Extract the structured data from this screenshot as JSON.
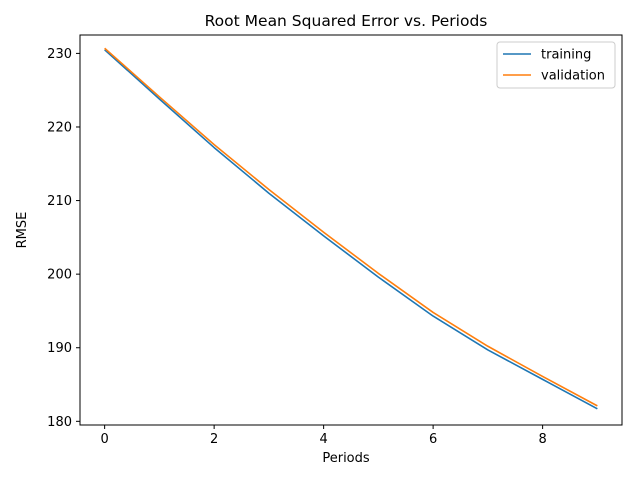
{
  "chart_data": {
    "type": "line",
    "title": "Root Mean Squared Error vs. Periods",
    "xlabel": "Periods",
    "ylabel": "RMSE",
    "xlim": [
      -0.45,
      9.45
    ],
    "ylim": [
      179.5,
      232.5
    ],
    "xticks": [
      0,
      2,
      4,
      6,
      8
    ],
    "yticks": [
      180,
      190,
      200,
      210,
      220,
      230
    ],
    "grid": false,
    "legend_position": "top-right",
    "x": [
      0,
      1,
      2,
      3,
      4,
      5,
      6,
      7,
      8,
      9
    ],
    "series": [
      {
        "name": "training",
        "color": "#1f77b4",
        "values": [
          230.5,
          223.8,
          217.2,
          211.0,
          205.2,
          199.6,
          194.3,
          189.7,
          185.7,
          181.7
        ]
      },
      {
        "name": "validation",
        "color": "#ff7f0e",
        "values": [
          230.7,
          224.1,
          217.6,
          211.5,
          205.7,
          200.1,
          194.8,
          190.2,
          186.1,
          182.1
        ]
      }
    ]
  }
}
